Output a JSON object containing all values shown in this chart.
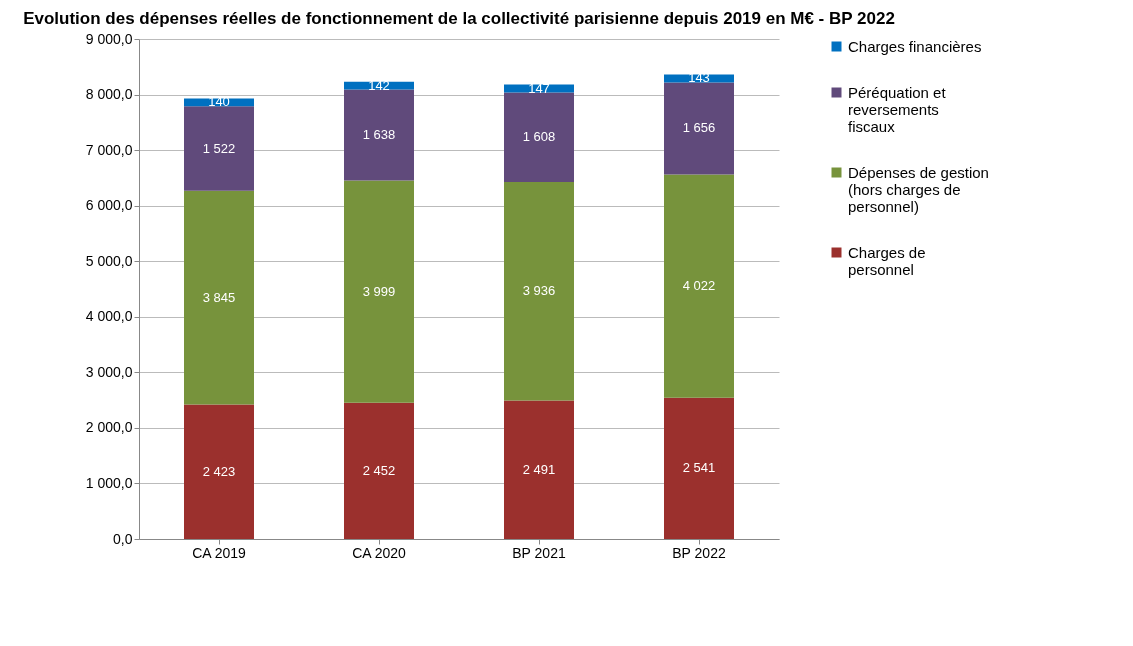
{
  "chart_data": {
    "type": "bar",
    "title": "Evolution des dépenses réelles de fonctionnement de la collectivité parisienne depuis 2019 en M€ -  BP 2022",
    "categories": [
      "CA 2019",
      "CA 2020",
      "BP 2021",
      "BP 2022"
    ],
    "stacked": true,
    "grid": "y",
    "legend": "right",
    "ylim": [
      0,
      9000
    ],
    "yticks": [
      {
        "value": 0,
        "label": "0,0"
      },
      {
        "value": 1000,
        "label": "1 000,0"
      },
      {
        "value": 2000,
        "label": "2 000,0"
      },
      {
        "value": 3000,
        "label": "3 000,0"
      },
      {
        "value": 4000,
        "label": "4 000,0"
      },
      {
        "value": 5000,
        "label": "5 000,0"
      },
      {
        "value": 6000,
        "label": "6 000,0"
      },
      {
        "value": 7000,
        "label": "7 000,0"
      },
      {
        "value": 8000,
        "label": "8 000,0"
      },
      {
        "value": 9000,
        "label": "9 000,0"
      }
    ],
    "series": [
      {
        "name": "Charges de personnel",
        "color": "#9b302d",
        "values": [
          2423,
          2452,
          2491,
          2541
        ],
        "value_labels": [
          "2 423",
          "2 452",
          "2 491",
          "2 541"
        ]
      },
      {
        "name": "Dépenses de gestion (hors charges de personnel)",
        "color": "#77933c",
        "values": [
          3845,
          3999,
          3936,
          4022
        ],
        "value_labels": [
          "3 845",
          "3 999",
          "3 936",
          "4 022"
        ]
      },
      {
        "name": "Péréquation et reversements fiscaux",
        "color": "#604a7b",
        "values": [
          1522,
          1638,
          1608,
          1656
        ],
        "value_labels": [
          "1 522",
          "1 638",
          "1 608",
          "1 656"
        ]
      },
      {
        "name": "Charges financières",
        "color": "#0070c0",
        "values": [
          140,
          142,
          147,
          143
        ],
        "value_labels": [
          "140",
          "142",
          "147",
          "143"
        ]
      }
    ]
  }
}
